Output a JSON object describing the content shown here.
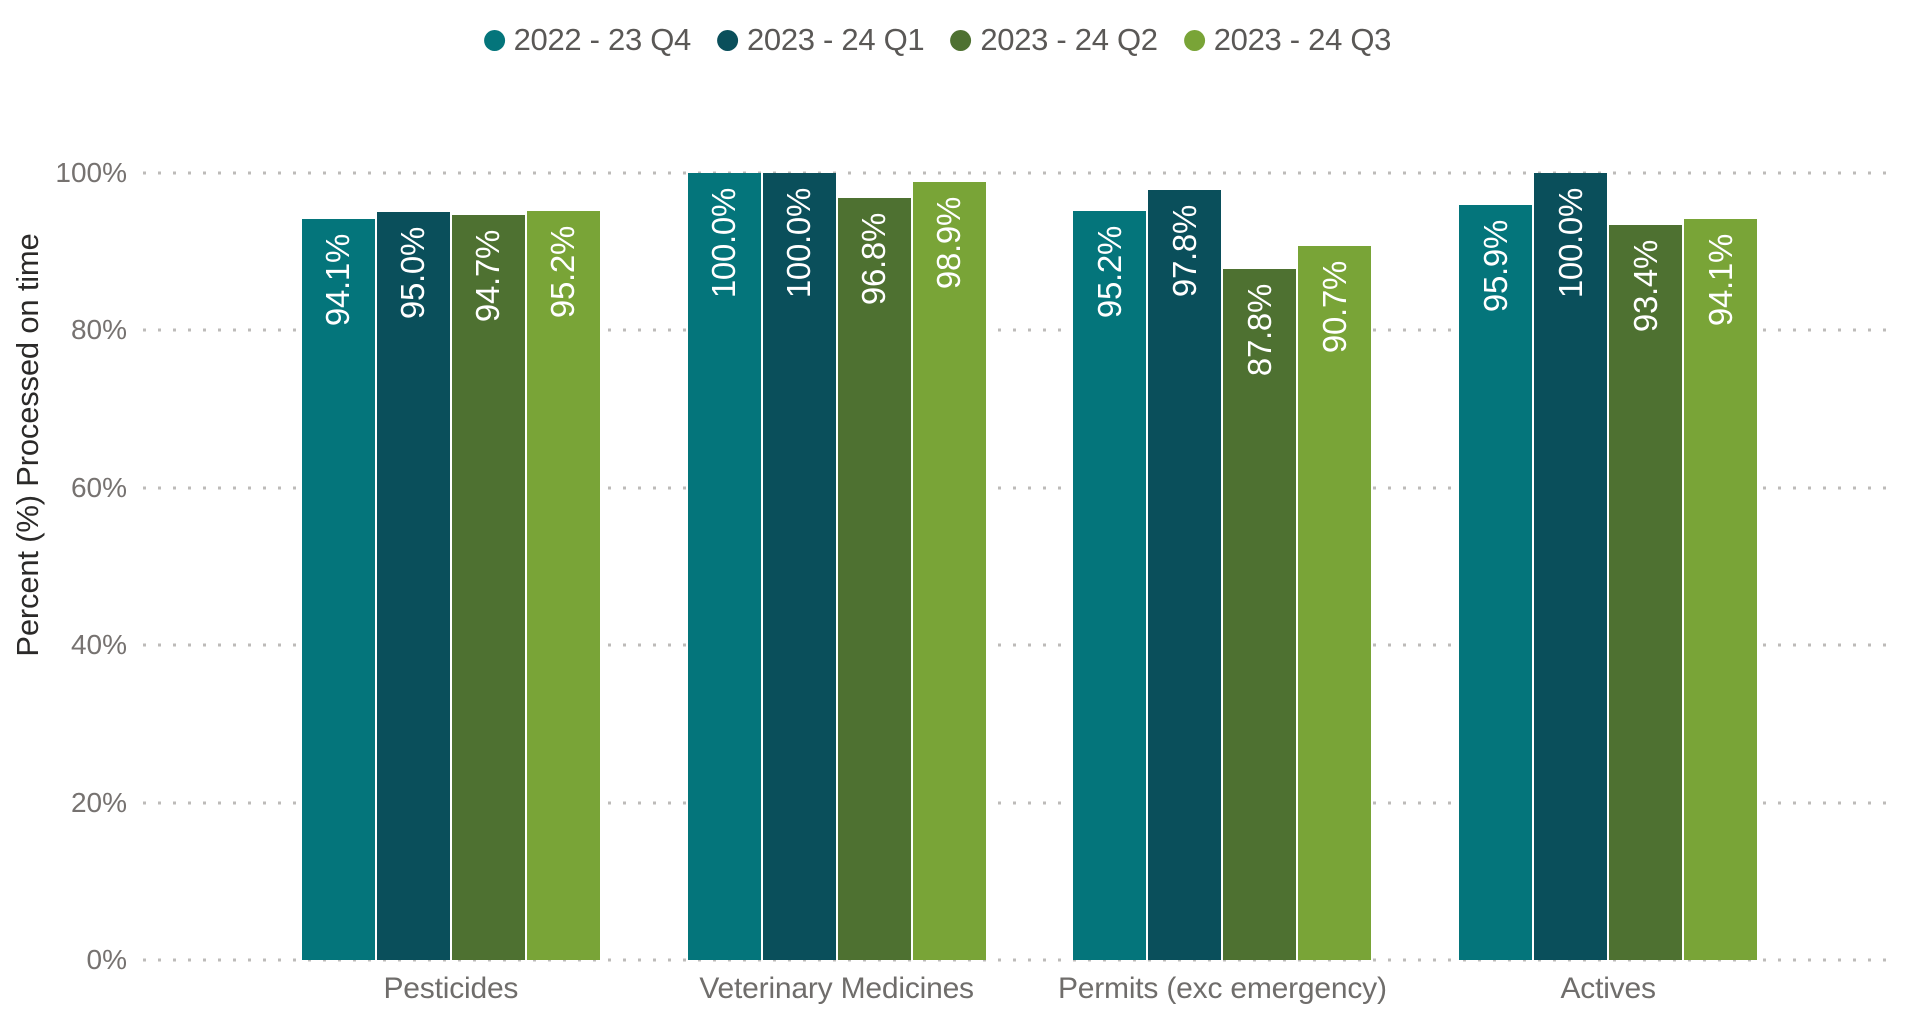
{
  "chart_data": {
    "type": "bar",
    "title": "",
    "xlabel": "",
    "ylabel": "Percent (%) Processed on time",
    "ylim": [
      0,
      100
    ],
    "grid": "horizontal-dotted",
    "legend_position": "top-center",
    "value_label_style": "rotated-vertical-white-inside-bar-top",
    "categories": [
      "Pesticides",
      "Veterinary Medicines",
      "Permits (exc emergency)",
      "Actives"
    ],
    "yticks": [
      {
        "label": "0%",
        "value": 0
      },
      {
        "label": "20%",
        "value": 20
      },
      {
        "label": "40%",
        "value": 40
      },
      {
        "label": "60%",
        "value": 60
      },
      {
        "label": "80%",
        "value": 80
      },
      {
        "label": "100%",
        "value": 100
      }
    ],
    "series": [
      {
        "name": "2022 - 23 Q4",
        "color": "#04757B",
        "values": [
          94.1,
          100.0,
          95.2,
          95.9
        ],
        "labels": [
          "94.1%",
          "100.0%",
          "95.2%",
          "95.9%"
        ]
      },
      {
        "name": "2023 - 24 Q1",
        "color": "#0A4F5B",
        "values": [
          95.0,
          100.0,
          97.8,
          100.0
        ],
        "labels": [
          "95.0%",
          "100.0%",
          "97.8%",
          "100.0%"
        ]
      },
      {
        "name": "2023 - 24 Q2",
        "color": "#4E7131",
        "values": [
          94.7,
          96.8,
          87.8,
          93.4
        ],
        "labels": [
          "94.7%",
          "96.8%",
          "87.8%",
          "93.4%"
        ]
      },
      {
        "name": "2023 - 24 Q3",
        "color": "#79A437",
        "values": [
          95.2,
          98.9,
          90.7,
          94.1
        ],
        "labels": [
          "95.2%",
          "98.9%",
          "90.7%",
          "94.1%"
        ]
      }
    ]
  },
  "colors": {
    "background": "#ffffff",
    "gridline": "#bdbbb9",
    "tick_text": "#767270",
    "category_text": "#6f6d6b",
    "legend_text": "#5a5856",
    "axis_title_text": "#2b2a29",
    "value_label_text": "#ffffff"
  }
}
